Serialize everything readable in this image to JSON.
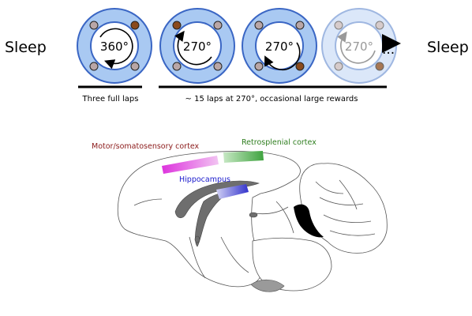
{
  "protocol": {
    "sleep_left": "Sleep",
    "sleep_right": "Sleep",
    "tracks": [
      {
        "angle_label": "360°",
        "arrow": "clockwise",
        "faded": false
      },
      {
        "angle_label": "270°",
        "arrow": "counterclockwise",
        "faded": false
      },
      {
        "angle_label": "270°",
        "arrow": "counterclockwise",
        "faded": false
      },
      {
        "angle_label": "270°",
        "arrow": "counterclockwise",
        "faded": true
      }
    ],
    "continuation": "...",
    "phase1_label": "Three full laps",
    "phase2_label": "~ 15 laps at 270°, occasional large rewards"
  },
  "brain": {
    "regions": [
      {
        "name": "Motor/somatosensory cortex",
        "color": "#8b1a1a",
        "fill": "#dd44dd"
      },
      {
        "name": "Retrosplenial cortex",
        "color": "#2e7d1e",
        "fill": "#3aa63a"
      },
      {
        "name": "Hippocampus",
        "color": "#1a1acc",
        "fill": "#3333dd"
      }
    ]
  },
  "colors": {
    "track_fill": "#a9c9f2",
    "track_stroke": "#3a66c4",
    "reward_active": "#8a4a1c",
    "reward_inactive": "#b9a6a6"
  }
}
